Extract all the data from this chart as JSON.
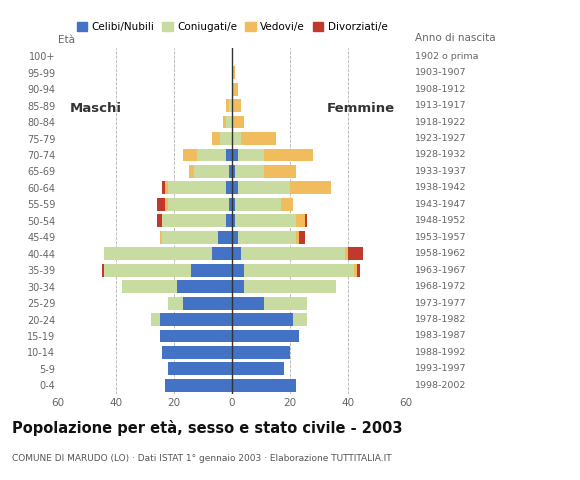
{
  "age_groups": [
    "0-4",
    "5-9",
    "10-14",
    "15-19",
    "20-24",
    "25-29",
    "30-34",
    "35-39",
    "40-44",
    "45-49",
    "50-54",
    "55-59",
    "60-64",
    "65-69",
    "70-74",
    "75-79",
    "80-84",
    "85-89",
    "90-94",
    "95-99",
    "100+"
  ],
  "birth_years": [
    "1998-2002",
    "1993-1997",
    "1988-1992",
    "1983-1987",
    "1978-1982",
    "1973-1977",
    "1968-1972",
    "1963-1967",
    "1958-1962",
    "1953-1957",
    "1948-1952",
    "1943-1947",
    "1938-1942",
    "1933-1937",
    "1928-1932",
    "1923-1927",
    "1918-1922",
    "1913-1917",
    "1908-1912",
    "1903-1907",
    "1902 o prima"
  ],
  "male_celibe": [
    23,
    22,
    24,
    25,
    25,
    17,
    19,
    14,
    7,
    5,
    2,
    1,
    2,
    1,
    2,
    0,
    0,
    0,
    0,
    0,
    0
  ],
  "male_coniugato": [
    0,
    0,
    0,
    0,
    3,
    5,
    19,
    30,
    37,
    19,
    22,
    21,
    20,
    12,
    10,
    4,
    2,
    1,
    0,
    0,
    0
  ],
  "male_vedovo": [
    0,
    0,
    0,
    0,
    0,
    0,
    0,
    0,
    0,
    1,
    0,
    1,
    1,
    2,
    5,
    3,
    1,
    1,
    0,
    0,
    0
  ],
  "male_divorziato": [
    0,
    0,
    0,
    0,
    0,
    0,
    0,
    1,
    0,
    0,
    2,
    3,
    1,
    0,
    0,
    0,
    0,
    0,
    0,
    0,
    0
  ],
  "female_celibe": [
    22,
    18,
    20,
    23,
    21,
    11,
    4,
    4,
    3,
    2,
    1,
    1,
    2,
    1,
    2,
    0,
    0,
    0,
    0,
    0,
    0
  ],
  "female_coniugato": [
    0,
    0,
    0,
    0,
    5,
    15,
    32,
    38,
    36,
    20,
    21,
    16,
    18,
    10,
    9,
    3,
    0,
    0,
    0,
    0,
    0
  ],
  "female_vedovo": [
    0,
    0,
    0,
    0,
    0,
    0,
    0,
    1,
    1,
    1,
    3,
    4,
    14,
    11,
    17,
    12,
    4,
    3,
    2,
    1,
    0
  ],
  "female_divorziato": [
    0,
    0,
    0,
    0,
    0,
    0,
    0,
    1,
    5,
    2,
    1,
    0,
    0,
    0,
    0,
    0,
    0,
    0,
    0,
    0,
    0
  ],
  "colors": {
    "celibe": "#4472c4",
    "coniugato": "#c8dba0",
    "vedovo": "#f0bc5e",
    "divorziato": "#c0392b"
  },
  "title": "Popolazione per età, sesso e stato civile - 2003",
  "subtitle": "COMUNE DI MARUDO (LO) · Dati ISTAT 1° gennaio 2003 · Elaborazione TUTTITALIA.IT",
  "xlabel_left": "Maschi",
  "xlabel_right": "Femmine",
  "xlim": 60,
  "legend_labels": [
    "Celibi/Nubili",
    "Coniugati/e",
    "Vedovi/e",
    "Divorziati/e"
  ],
  "bg_color": "#ffffff",
  "grid_color": "#b0b0b0"
}
